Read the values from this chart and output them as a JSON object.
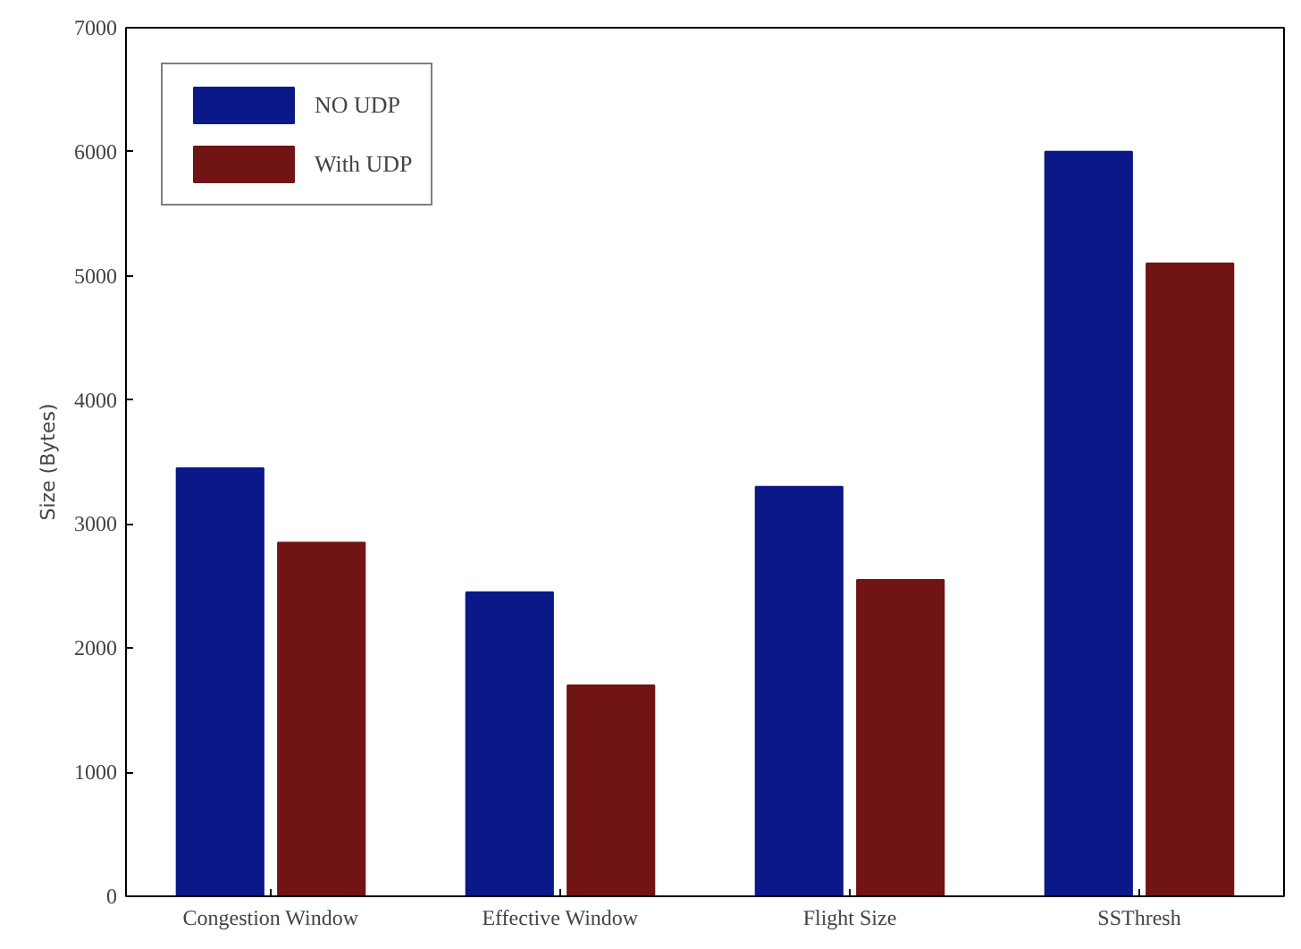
{
  "chart_data": {
    "type": "bar",
    "ylabel": "Size (Bytes)",
    "categories": [
      "Congestion Window",
      "Effective Window",
      "Flight Size",
      "SSThresh"
    ],
    "series": [
      {
        "name": "NO UDP",
        "color": "#0a1888",
        "values": [
          3450,
          2450,
          3300,
          6000
        ]
      },
      {
        "name": "With UDP",
        "color": "#701414",
        "values": [
          2850,
          1700,
          2550,
          5100
        ]
      }
    ],
    "ylim": [
      0,
      7000
    ],
    "yticks": [
      0,
      1000,
      2000,
      3000,
      4000,
      5000,
      6000,
      7000
    ],
    "grid": false,
    "legend": "top left"
  }
}
